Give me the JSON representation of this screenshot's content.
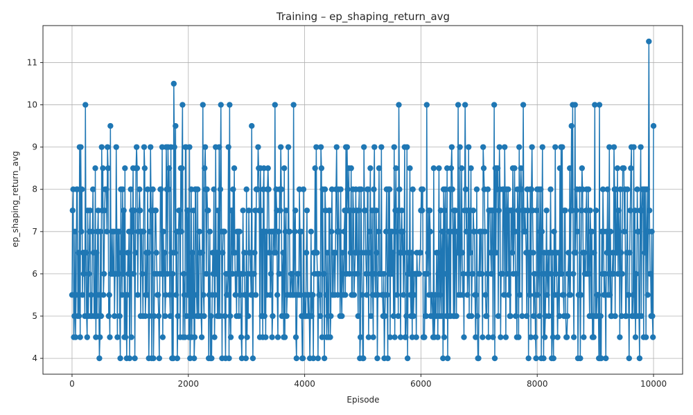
{
  "chart_data": {
    "type": "line",
    "title": "Training – ep_shaping_return_avg",
    "xlabel": "Episode",
    "ylabel": "ep_shaping_return_avg",
    "xlim": [
      -500,
      10500
    ],
    "ylim": [
      3.625,
      11.875
    ],
    "x_ticks": [
      0,
      2000,
      4000,
      6000,
      8000,
      10000
    ],
    "y_ticks": [
      4,
      5,
      6,
      7,
      8,
      9,
      10,
      11
    ],
    "grid": true,
    "series": [
      {
        "color": "#1f77b4",
        "marker": "circle",
        "episodes": {
          "start": 0,
          "end": 10000,
          "step": 10
        },
        "value_levels": [
          4,
          4.5,
          5,
          5.5,
          6,
          6.5,
          7,
          7.5,
          8,
          8.5,
          9,
          9.5,
          10
        ],
        "notable_points": [
          {
            "x": 230,
            "y": 10
          },
          {
            "x": 660,
            "y": 9.5
          },
          {
            "x": 1750,
            "y": 10.5
          },
          {
            "x": 1780,
            "y": 9.5
          },
          {
            "x": 1900,
            "y": 10
          },
          {
            "x": 2250,
            "y": 10
          },
          {
            "x": 2560,
            "y": 10
          },
          {
            "x": 2710,
            "y": 10
          },
          {
            "x": 3090,
            "y": 9.5
          },
          {
            "x": 3490,
            "y": 10
          },
          {
            "x": 3810,
            "y": 10
          },
          {
            "x": 5620,
            "y": 10
          },
          {
            "x": 6100,
            "y": 10
          },
          {
            "x": 6640,
            "y": 10
          },
          {
            "x": 6760,
            "y": 10
          },
          {
            "x": 7260,
            "y": 10
          },
          {
            "x": 7760,
            "y": 10
          },
          {
            "x": 8590,
            "y": 9.5
          },
          {
            "x": 8610,
            "y": 10
          },
          {
            "x": 8650,
            "y": 10
          },
          {
            "x": 8990,
            "y": 10
          },
          {
            "x": 9070,
            "y": 10
          },
          {
            "x": 9920,
            "y": 11.5
          },
          {
            "x": 10000,
            "y": 9.5
          }
        ]
      }
    ]
  }
}
